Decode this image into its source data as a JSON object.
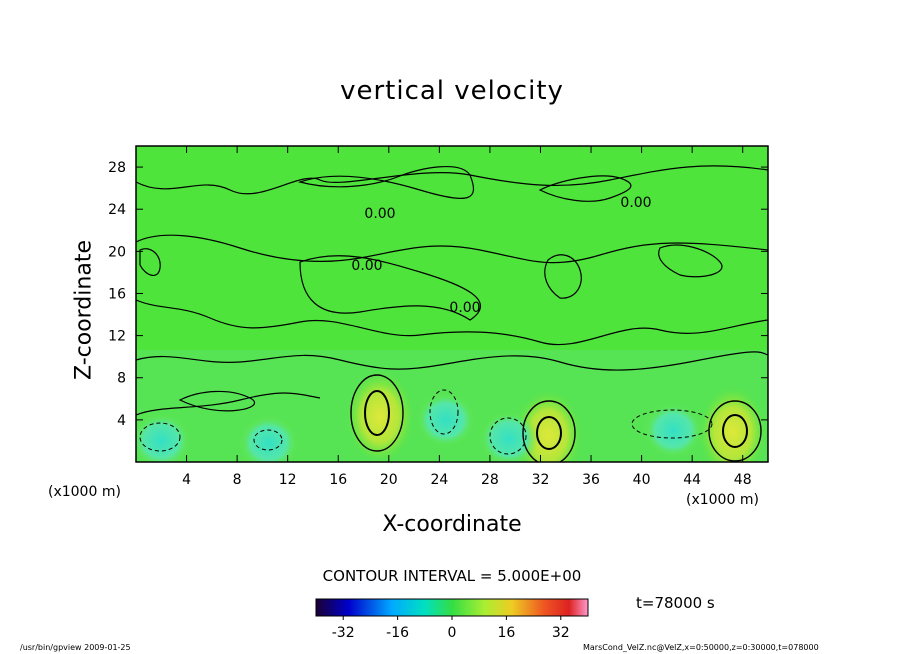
{
  "chart_data": {
    "type": "heatmap",
    "title": "vertical velocity",
    "xlabel": "X-coordinate",
    "ylabel": "Z-coordinate",
    "xunit": "(x1000 m)",
    "xlim": [
      0,
      50
    ],
    "ylim": [
      0,
      30
    ],
    "xticks": [
      "4",
      "8",
      "12",
      "16",
      "20",
      "24",
      "28",
      "32",
      "36",
      "40",
      "44",
      "48"
    ],
    "yticks": [
      "4",
      "8",
      "12",
      "16",
      "20",
      "24",
      "28"
    ],
    "contour_interval": "CONTOUR INTERVAL = 5.000E+00",
    "contour_labels": [
      "0.00",
      "0.00",
      "0.00",
      "0.00"
    ],
    "colorbar": {
      "ticks": [
        "-32",
        "-16",
        "0",
        "16",
        "32"
      ],
      "range": [
        -40,
        40
      ],
      "colors": [
        "#1a0033",
        "#0000cc",
        "#00aaff",
        "#00e0c0",
        "#33dd44",
        "#aaee33",
        "#eecc22",
        "#ee5522",
        "#dd2222",
        "#ff99cc"
      ]
    },
    "time_label": "t=78000 s",
    "footer_left": "/usr/bin/gpview   2009-01-25",
    "footer_right": "MarsCond_VelZ.nc@VelZ,x=0:50000,z=0:30000,t=078000",
    "features": [
      {
        "kind": "updraft",
        "x": 19.3,
        "z": 4.3,
        "value": 12
      },
      {
        "kind": "updraft",
        "x": 32.6,
        "z": 2.5,
        "value": 10
      },
      {
        "kind": "updraft",
        "x": 47.2,
        "z": 2.8,
        "value": 10
      },
      {
        "kind": "downdraft",
        "x": 2.0,
        "z": 2.0,
        "value": -8
      },
      {
        "kind": "downdraft",
        "x": 10.5,
        "z": 1.8,
        "value": -6
      },
      {
        "kind": "downdraft",
        "x": 24.5,
        "z": 4.0,
        "value": -6
      },
      {
        "kind": "downdraft",
        "x": 29.5,
        "z": 2.2,
        "value": -8
      },
      {
        "kind": "downdraft",
        "x": 42.5,
        "z": 3.0,
        "value": -6
      }
    ]
  }
}
